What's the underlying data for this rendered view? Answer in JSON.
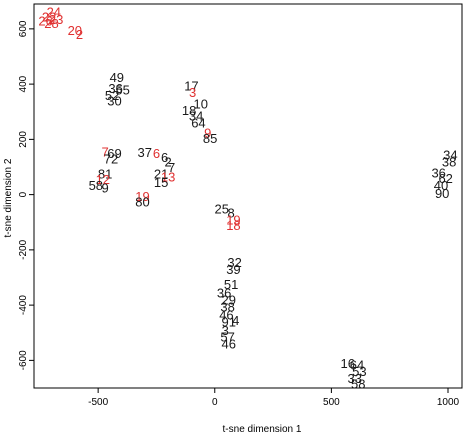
{
  "chart_data": {
    "type": "scatter",
    "title": "",
    "xlabel": "t-sne dimension 1",
    "ylabel": "t-sne dimension 2",
    "xlim": [
      -775,
      1060
    ],
    "ylim": [
      -700,
      690
    ],
    "xticks": [
      -500,
      0,
      500,
      1000
    ],
    "yticks": [
      -600,
      -400,
      -200,
      0,
      200,
      400,
      600
    ],
    "colors": {
      "black": "#1a1a1a",
      "red": "#e03030"
    },
    "points": [
      {
        "x": -690,
        "y": 658,
        "label": "24",
        "color": "red"
      },
      {
        "x": -710,
        "y": 640,
        "label": "22",
        "color": "red"
      },
      {
        "x": -680,
        "y": 630,
        "label": "23",
        "color": "red"
      },
      {
        "x": -700,
        "y": 615,
        "label": "28",
        "color": "red"
      },
      {
        "x": -725,
        "y": 625,
        "label": "26",
        "color": "red"
      },
      {
        "x": -600,
        "y": 590,
        "label": "20",
        "color": "red"
      },
      {
        "x": -580,
        "y": 575,
        "label": "2",
        "color": "red"
      },
      {
        "x": -420,
        "y": 420,
        "label": "49",
        "color": "black"
      },
      {
        "x": -425,
        "y": 380,
        "label": "36",
        "color": "black"
      },
      {
        "x": -395,
        "y": 375,
        "label": "55",
        "color": "black"
      },
      {
        "x": -440,
        "y": 355,
        "label": "52",
        "color": "black"
      },
      {
        "x": -430,
        "y": 335,
        "label": "30",
        "color": "black"
      },
      {
        "x": -100,
        "y": 390,
        "label": "17",
        "color": "black"
      },
      {
        "x": -95,
        "y": 365,
        "label": "3",
        "color": "red"
      },
      {
        "x": -60,
        "y": 325,
        "label": "10",
        "color": "black"
      },
      {
        "x": -110,
        "y": 300,
        "label": "18",
        "color": "black"
      },
      {
        "x": -80,
        "y": 280,
        "label": "34",
        "color": "black"
      },
      {
        "x": -70,
        "y": 255,
        "label": "64",
        "color": "black"
      },
      {
        "x": -30,
        "y": 220,
        "label": "9",
        "color": "red"
      },
      {
        "x": -20,
        "y": 200,
        "label": "85",
        "color": "black"
      },
      {
        "x": -470,
        "y": 150,
        "label": "7",
        "color": "red"
      },
      {
        "x": -430,
        "y": 145,
        "label": "69",
        "color": "black"
      },
      {
        "x": -445,
        "y": 125,
        "label": "72",
        "color": "black"
      },
      {
        "x": -300,
        "y": 148,
        "label": "37",
        "color": "black"
      },
      {
        "x": -250,
        "y": 145,
        "label": "6",
        "color": "red"
      },
      {
        "x": -215,
        "y": 130,
        "label": "6",
        "color": "black"
      },
      {
        "x": -200,
        "y": 115,
        "label": "2",
        "color": "black"
      },
      {
        "x": -185,
        "y": 95,
        "label": "7",
        "color": "black"
      },
      {
        "x": -230,
        "y": 70,
        "label": "21",
        "color": "black"
      },
      {
        "x": -200,
        "y": 60,
        "label": "13",
        "color": "red"
      },
      {
        "x": -230,
        "y": 40,
        "label": "15",
        "color": "black"
      },
      {
        "x": -470,
        "y": 70,
        "label": "81",
        "color": "black"
      },
      {
        "x": -480,
        "y": 50,
        "label": "12",
        "color": "red"
      },
      {
        "x": -510,
        "y": 30,
        "label": "58",
        "color": "black"
      },
      {
        "x": -470,
        "y": 20,
        "label": "9",
        "color": "black"
      },
      {
        "x": -310,
        "y": -10,
        "label": "19",
        "color": "red"
      },
      {
        "x": -310,
        "y": -30,
        "label": "80",
        "color": "black"
      },
      {
        "x": 30,
        "y": -55,
        "label": "25",
        "color": "black"
      },
      {
        "x": 70,
        "y": -70,
        "label": "8",
        "color": "black"
      },
      {
        "x": 80,
        "y": -95,
        "label": "19",
        "color": "red"
      },
      {
        "x": 80,
        "y": -115,
        "label": "18",
        "color": "red"
      },
      {
        "x": 1010,
        "y": 140,
        "label": "34",
        "color": "black"
      },
      {
        "x": 1005,
        "y": 115,
        "label": "38",
        "color": "black"
      },
      {
        "x": 960,
        "y": 75,
        "label": "36",
        "color": "black"
      },
      {
        "x": 990,
        "y": 55,
        "label": "62",
        "color": "black"
      },
      {
        "x": 970,
        "y": 30,
        "label": "40",
        "color": "black"
      },
      {
        "x": 975,
        "y": 0,
        "label": "90",
        "color": "black"
      },
      {
        "x": 85,
        "y": -250,
        "label": "32",
        "color": "black"
      },
      {
        "x": 80,
        "y": -275,
        "label": "39",
        "color": "black"
      },
      {
        "x": 70,
        "y": -330,
        "label": "51",
        "color": "black"
      },
      {
        "x": 40,
        "y": -360,
        "label": "36",
        "color": "black"
      },
      {
        "x": 60,
        "y": -385,
        "label": "29",
        "color": "black"
      },
      {
        "x": 55,
        "y": -410,
        "label": "38",
        "color": "black"
      },
      {
        "x": 50,
        "y": -440,
        "label": "46",
        "color": "black"
      },
      {
        "x": 60,
        "y": -465,
        "label": "91",
        "color": "black"
      },
      {
        "x": 90,
        "y": -460,
        "label": "4",
        "color": "black"
      },
      {
        "x": 45,
        "y": -495,
        "label": "3",
        "color": "black"
      },
      {
        "x": 55,
        "y": -520,
        "label": "57",
        "color": "black"
      },
      {
        "x": 60,
        "y": -545,
        "label": "46",
        "color": "black"
      },
      {
        "x": 570,
        "y": -615,
        "label": "16",
        "color": "black"
      },
      {
        "x": 610,
        "y": -620,
        "label": "64",
        "color": "black"
      },
      {
        "x": 620,
        "y": -645,
        "label": "53",
        "color": "black"
      },
      {
        "x": 600,
        "y": -670,
        "label": "33",
        "color": "black"
      },
      {
        "x": 615,
        "y": -690,
        "label": "58",
        "color": "black"
      }
    ]
  }
}
